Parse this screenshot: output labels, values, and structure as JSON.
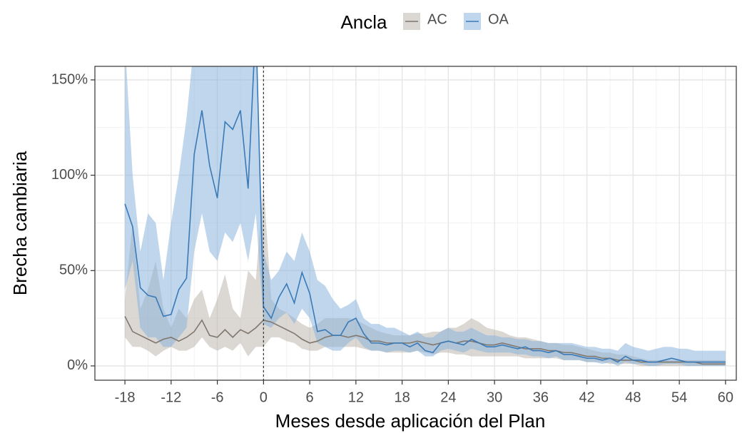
{
  "chart_data": {
    "type": "line",
    "legend_title": "Ancla",
    "xlabel": "Meses desde aplicación del Plan",
    "ylabel": "Brecha cambiaria",
    "x": [
      -18,
      -17,
      -16,
      -15,
      -14,
      -13,
      -12,
      -11,
      -10,
      -9,
      -8,
      -7,
      -6,
      -5,
      -4,
      -3,
      -2,
      -1,
      0,
      1,
      2,
      3,
      4,
      5,
      6,
      7,
      8,
      9,
      10,
      11,
      12,
      13,
      14,
      15,
      16,
      17,
      18,
      19,
      20,
      21,
      22,
      23,
      24,
      25,
      26,
      27,
      28,
      29,
      30,
      31,
      32,
      33,
      34,
      35,
      36,
      37,
      38,
      39,
      40,
      41,
      42,
      43,
      44,
      45,
      46,
      47,
      48,
      49,
      50,
      51,
      52,
      53,
      54,
      55,
      56,
      57,
      58,
      59,
      60
    ],
    "series": [
      {
        "name": "AC",
        "color": "#80776d",
        "band_color": "#bdb6ae",
        "values": [
          26,
          18,
          16,
          14,
          12,
          14,
          15,
          13,
          15,
          18,
          24,
          16,
          15,
          19,
          15,
          19,
          17,
          20,
          24,
          23,
          21,
          19,
          17,
          14,
          12,
          13,
          15,
          16,
          16,
          15,
          16,
          15,
          13,
          13,
          12,
          12,
          12,
          12,
          13,
          12,
          11,
          12,
          13,
          12,
          13,
          13,
          12,
          11,
          11,
          12,
          11,
          10,
          9,
          9,
          9,
          8,
          8,
          7,
          7,
          6,
          5,
          5,
          4,
          4,
          3,
          3,
          3,
          2,
          2,
          2,
          2,
          2,
          2,
          2,
          2,
          1,
          1,
          1,
          1
        ],
        "upper": [
          35,
          75,
          30,
          40,
          55,
          30,
          20,
          30,
          25,
          35,
          40,
          25,
          35,
          48,
          30,
          25,
          50,
          45,
          95,
          35,
          30,
          28,
          25,
          22,
          20,
          22,
          25,
          25,
          25,
          25,
          24,
          22,
          20,
          18,
          17,
          16,
          16,
          16,
          17,
          17,
          18,
          18,
          20,
          20,
          22,
          25,
          23,
          20,
          19,
          18,
          16,
          15,
          15,
          14,
          13,
          12,
          12,
          11,
          11,
          10,
          9,
          8,
          7,
          7,
          6,
          6,
          5,
          4,
          3,
          3,
          3,
          3,
          3,
          3,
          3,
          3,
          3,
          3,
          3
        ],
        "lower": [
          15,
          10,
          10,
          8,
          5,
          8,
          10,
          8,
          8,
          10,
          15,
          10,
          8,
          10,
          8,
          12,
          5,
          10,
          10,
          15,
          15,
          13,
          12,
          9,
          8,
          8,
          10,
          10,
          10,
          10,
          10,
          9,
          8,
          8,
          7,
          7,
          7,
          7,
          8,
          7,
          6,
          7,
          7,
          6,
          6,
          5,
          5,
          5,
          5,
          5,
          5,
          5,
          4,
          4,
          4,
          4,
          4,
          3,
          3,
          3,
          2,
          2,
          2,
          1,
          1,
          1,
          1,
          0,
          0,
          0,
          0,
          0,
          0,
          0,
          0,
          0,
          0,
          0,
          0
        ]
      },
      {
        "name": "OA",
        "color": "#3a7ab8",
        "band_color": "#8db4dc",
        "values": [
          85,
          73,
          41,
          37,
          36,
          26,
          27,
          40,
          46,
          111,
          134,
          105,
          88,
          128,
          124,
          134,
          93,
          180,
          31,
          25,
          36,
          43,
          33,
          49,
          38,
          18,
          19,
          16,
          16,
          23,
          25,
          17,
          12,
          12,
          11,
          12,
          12,
          10,
          12,
          8,
          7,
          12,
          13,
          12,
          11,
          14,
          12,
          10,
          10,
          11,
          10,
          9,
          10,
          8,
          8,
          7,
          8,
          6,
          6,
          5,
          4,
          4,
          3,
          4,
          2,
          5,
          3,
          3,
          2,
          2,
          3,
          4,
          3,
          2,
          2,
          2,
          2,
          2,
          2
        ],
        "upper": [
          170,
          100,
          60,
          80,
          75,
          45,
          75,
          100,
          130,
          170,
          170,
          170,
          170,
          170,
          170,
          170,
          170,
          170,
          60,
          45,
          50,
          60,
          55,
          70,
          60,
          45,
          42,
          35,
          30,
          32,
          35,
          25,
          22,
          22,
          20,
          20,
          18,
          16,
          18,
          15,
          15,
          18,
          20,
          18,
          18,
          20,
          18,
          16,
          16,
          15,
          15,
          14,
          14,
          13,
          13,
          12,
          12,
          12,
          12,
          11,
          10,
          10,
          9,
          9,
          8,
          12,
          10,
          9,
          8,
          9,
          10,
          10,
          9,
          9,
          8,
          8,
          8,
          8,
          8
        ],
        "lower": [
          40,
          55,
          20,
          15,
          15,
          10,
          10,
          15,
          20,
          60,
          80,
          60,
          55,
          70,
          65,
          75,
          55,
          80,
          22,
          20,
          25,
          28,
          22,
          30,
          25,
          12,
          10,
          8,
          8,
          12,
          15,
          10,
          8,
          8,
          7,
          8,
          8,
          7,
          8,
          5,
          5,
          8,
          9,
          8,
          7,
          9,
          8,
          7,
          7,
          7,
          7,
          6,
          6,
          5,
          5,
          4,
          5,
          3,
          3,
          3,
          2,
          2,
          1,
          2,
          0,
          2,
          1,
          1,
          0,
          0,
          1,
          1,
          1,
          0,
          0,
          0,
          0,
          0,
          0
        ]
      }
    ],
    "xlim": [
      -21.9,
      61.4
    ],
    "xticks": [
      -18,
      -12,
      -6,
      0,
      6,
      12,
      18,
      24,
      30,
      36,
      42,
      48,
      54,
      60
    ],
    "ylim": [
      -7.5,
      157.1
    ],
    "yticks": [
      {
        "value": 0,
        "label": "0%"
      },
      {
        "value": 50,
        "label": "50%"
      },
      {
        "value": 100,
        "label": "100%"
      },
      {
        "value": 150,
        "label": "150%"
      }
    ],
    "vline": 0,
    "grid": true
  }
}
